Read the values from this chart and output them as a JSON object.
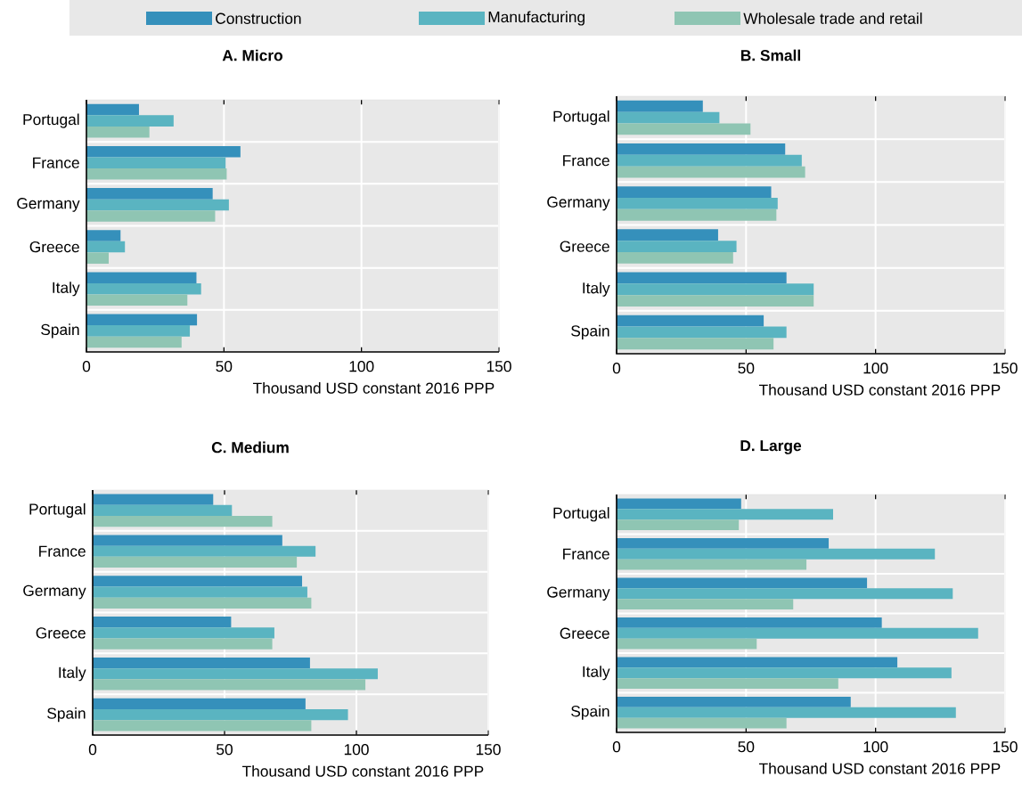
{
  "chart_data": [
    {
      "type": "bar",
      "orientation": "horizontal",
      "title": "A. Micro",
      "xlabel": "Thousand USD constant 2016 PPP",
      "categories": [
        "Portugal",
        "France",
        "Germany",
        "Greece",
        "Italy",
        "Spain"
      ],
      "xlim": [
        0,
        150
      ],
      "xticks": [
        0,
        50,
        100,
        150
      ],
      "grid": "x",
      "legend": "top",
      "series": [
        {
          "name": "Construction",
          "color": "#3590bb",
          "values": [
            19.1,
            56,
            45.9,
            12.4,
            40,
            40.2
          ]
        },
        {
          "name": "Manufacturing",
          "color": "#5ab4c1",
          "values": [
            31.7,
            50.6,
            51.8,
            14,
            41.7,
            37.6
          ]
        },
        {
          "name": "Wholesale trade and retail",
          "color": "#8fc5b3",
          "values": [
            22.9,
            51,
            46.8,
            8.1,
            36.7,
            34.6
          ]
        }
      ]
    },
    {
      "type": "bar",
      "orientation": "horizontal",
      "title": "B. Small",
      "xlabel": "Thousand USD constant 2016 PPP",
      "categories": [
        "Portugal",
        "France",
        "Germany",
        "Greece",
        "Italy",
        "Spain"
      ],
      "xlim": [
        0,
        150
      ],
      "xticks": [
        0,
        50,
        100,
        150
      ],
      "grid": "x",
      "series": [
        {
          "color": "#3590bb",
          "values": [
            33.3,
            65.1,
            59.7,
            39.2,
            65.6,
            56.8
          ]
        },
        {
          "color": "#5ab4c1",
          "values": [
            39.7,
            71.5,
            62.2,
            46.3,
            76.1,
            65.6
          ]
        },
        {
          "color": "#8fc5b3",
          "values": [
            51.7,
            72.8,
            61.7,
            45,
            76.1,
            60.6
          ]
        }
      ]
    },
    {
      "type": "bar",
      "orientation": "horizontal",
      "title": "C. Medium",
      "xlabel": "Thousand USD constant 2016 PPP",
      "categories": [
        "Portugal",
        "France",
        "Germany",
        "Greece",
        "Italy",
        "Spain"
      ],
      "xlim": [
        0,
        150
      ],
      "xticks": [
        0,
        50,
        100,
        150
      ],
      "grid": "x",
      "series": [
        {
          "color": "#3590bb",
          "values": [
            45.7,
            71.9,
            79.4,
            52.5,
            82.4,
            80.7
          ]
        },
        {
          "color": "#5ab4c1",
          "values": [
            52.8,
            84.5,
            81.4,
            68.9,
            108.1,
            96.8
          ]
        },
        {
          "color": "#8fc5b3",
          "values": [
            68.1,
            77.4,
            82.9,
            68.1,
            103.4,
            82.9
          ]
        }
      ]
    },
    {
      "type": "bar",
      "orientation": "horizontal",
      "title": "D. Large",
      "xlabel": "Thousand USD constant 2016 PPP",
      "categories": [
        "Portugal",
        "France",
        "Germany",
        "Greece",
        "Italy",
        "Spain"
      ],
      "xlim": [
        0,
        150
      ],
      "xticks": [
        0,
        50,
        100,
        150
      ],
      "grid": "x",
      "series": [
        {
          "color": "#3590bb",
          "values": [
            48.1,
            81.9,
            96.7,
            102.4,
            108.4,
            90.4
          ]
        },
        {
          "color": "#5ab4c1",
          "values": [
            83.6,
            122.9,
            129.8,
            139.6,
            129.3,
            131
          ]
        },
        {
          "color": "#8fc5b3",
          "values": [
            47.2,
            73.3,
            68.2,
            54.1,
            85.6,
            65.6
          ]
        }
      ]
    }
  ]
}
